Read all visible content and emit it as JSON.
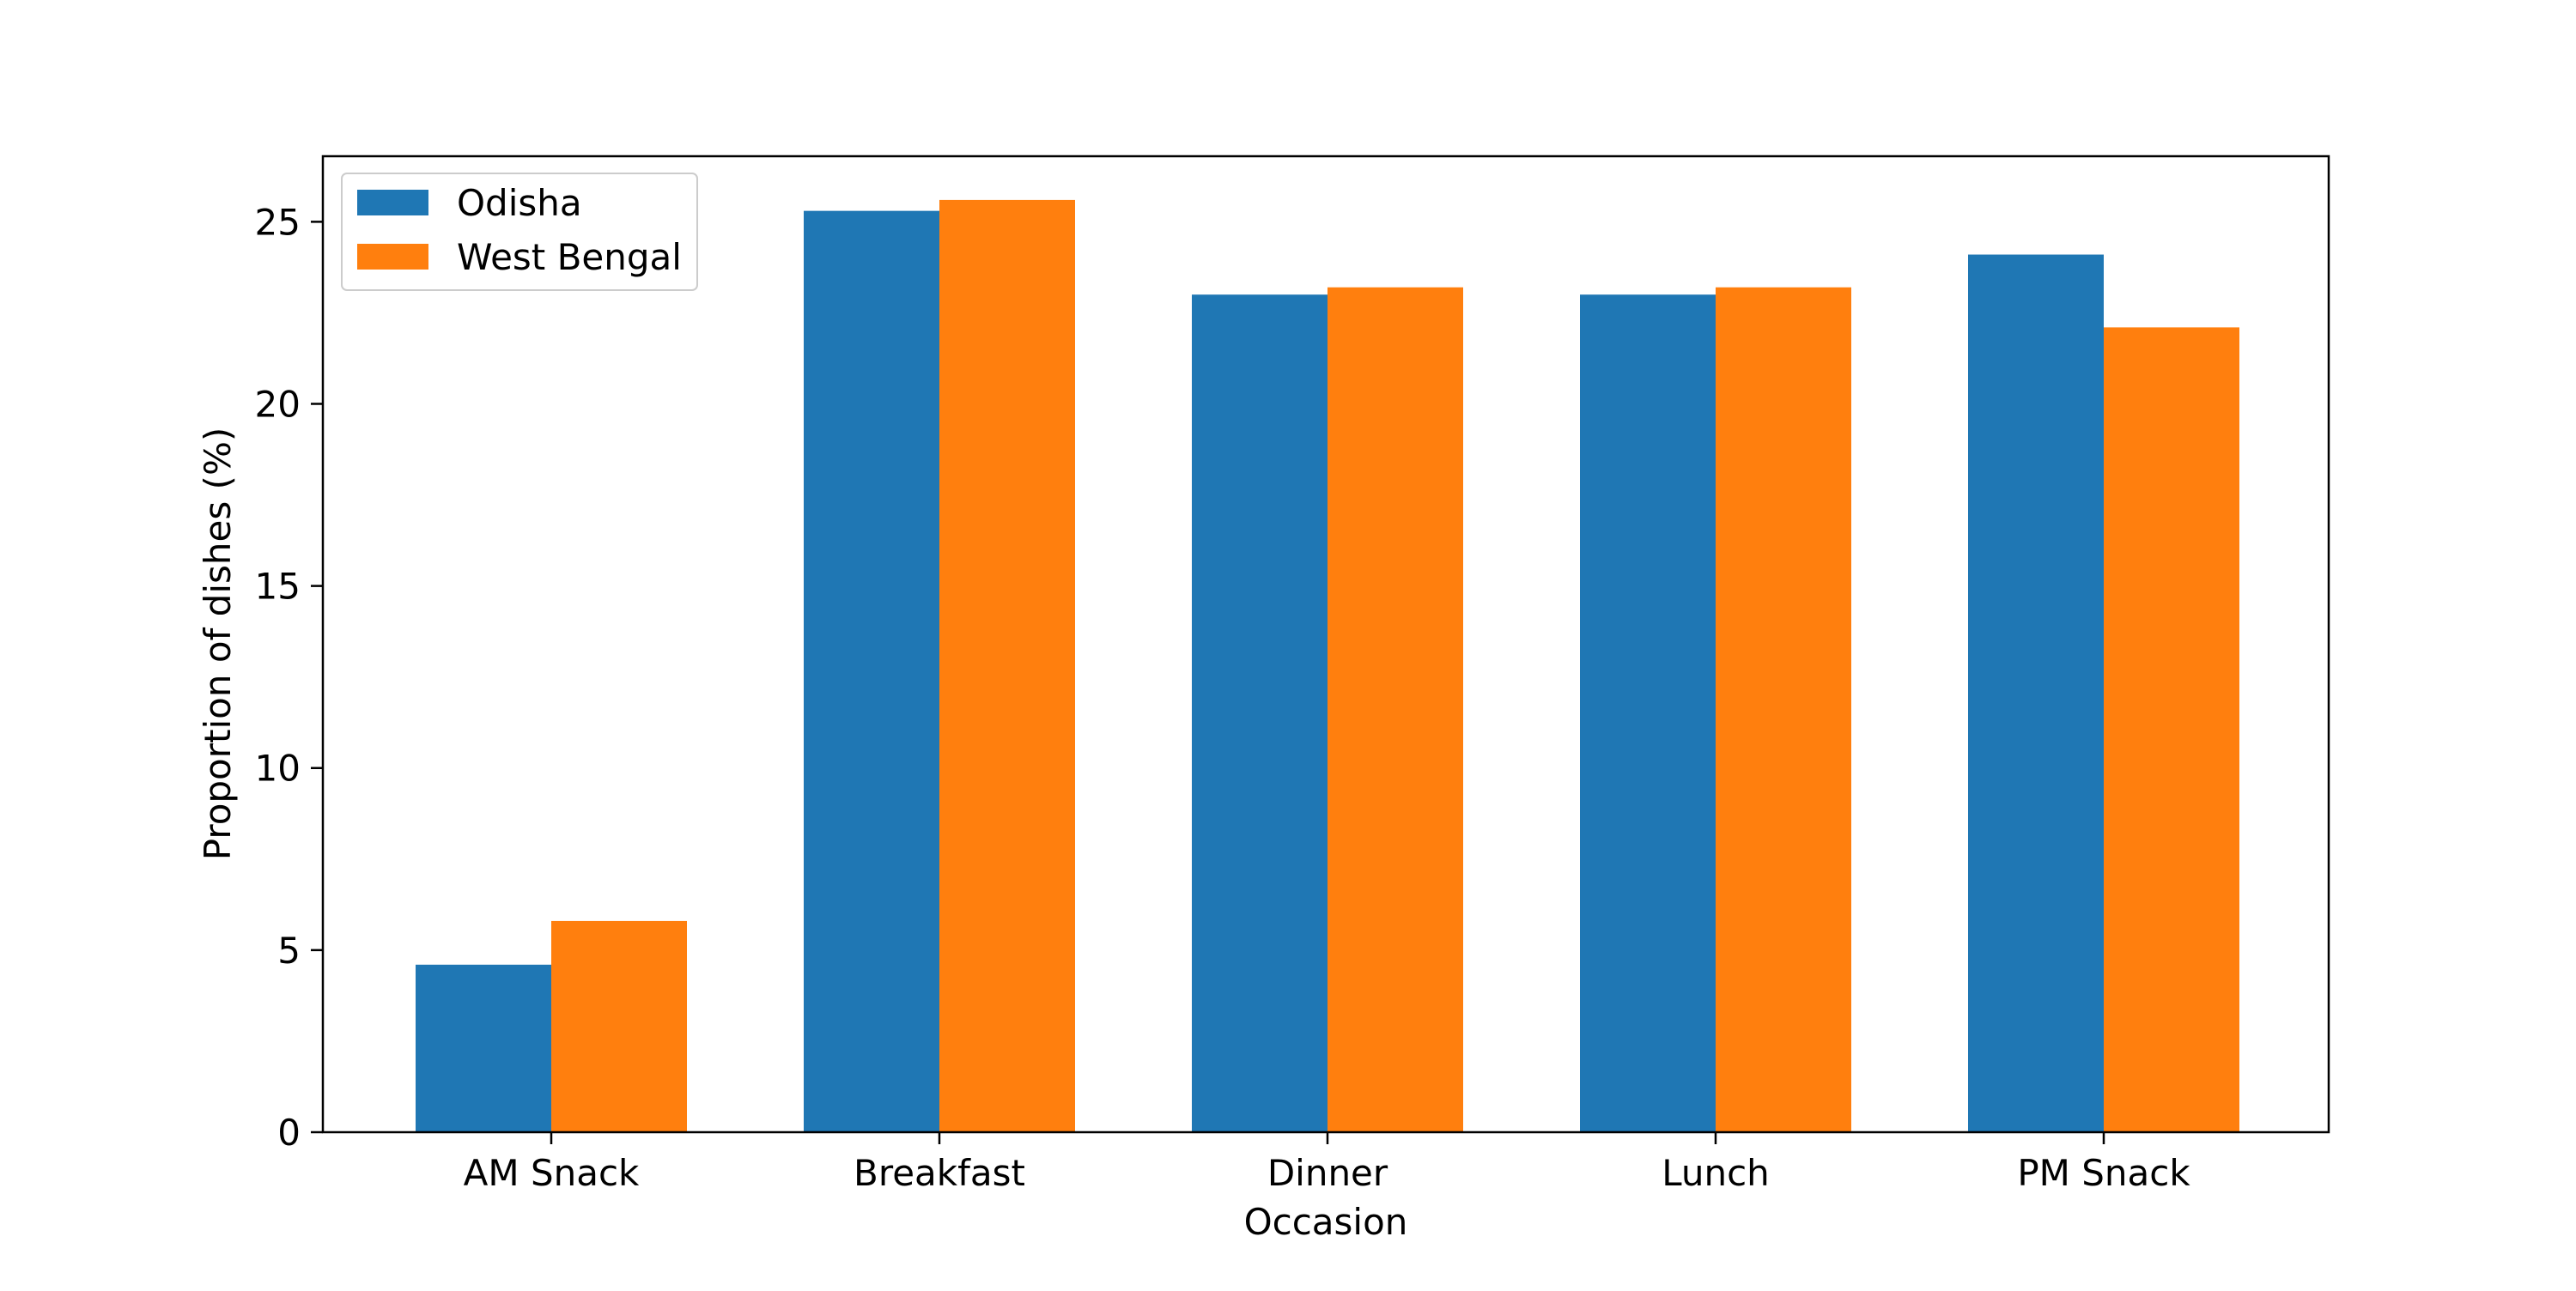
{
  "chart_data": {
    "type": "bar",
    "title": "",
    "xlabel": "Occasion",
    "ylabel": "Proportion of dishes (%)",
    "categories": [
      "AM Snack",
      "Breakfast",
      "Dinner",
      "Lunch",
      "PM Snack"
    ],
    "series": [
      {
        "name": "Odisha",
        "color": "#1f77b4",
        "values": [
          4.6,
          25.3,
          23.0,
          23.0,
          24.1
        ]
      },
      {
        "name": "West Bengal",
        "color": "#ff7f0e",
        "values": [
          5.8,
          25.6,
          23.2,
          23.2,
          22.1
        ]
      }
    ],
    "ylim": [
      0,
      26.8
    ],
    "yticks": [
      0,
      5,
      10,
      15,
      20,
      25
    ],
    "grid": false,
    "legend_position": "top-left"
  }
}
